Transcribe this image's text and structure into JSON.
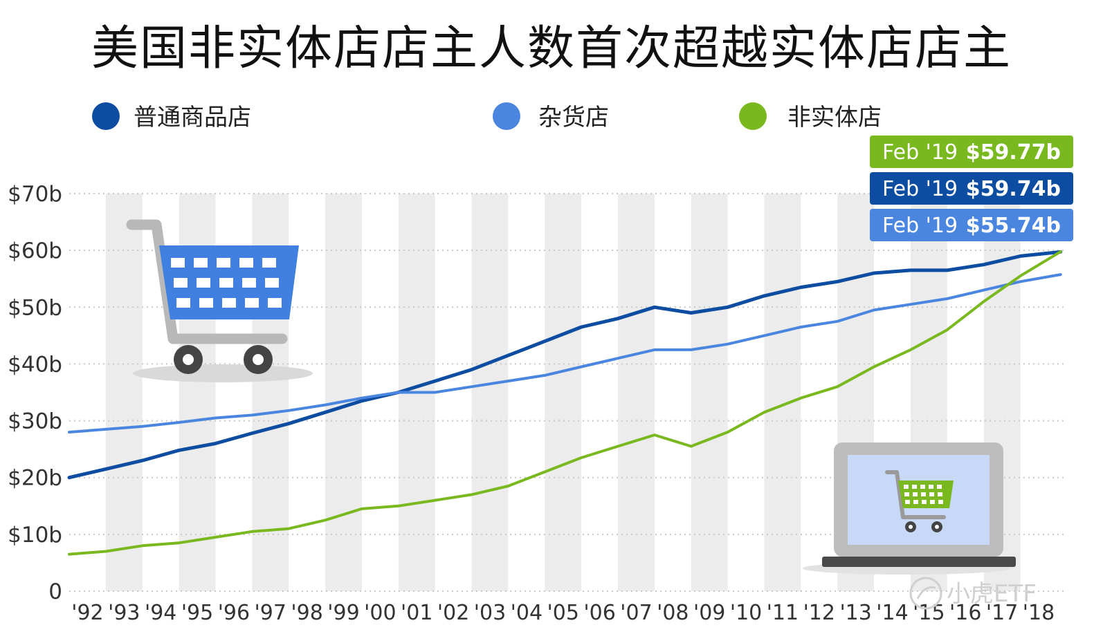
{
  "title": "美国非实体店店主人数首次超越实体店店主",
  "watermark": "小虎ETF",
  "chart_data": {
    "type": "line",
    "title": "美国非实体店店主人数首次超越实体店店主",
    "ylim": [
      0,
      70
    ],
    "xlim": [
      1992,
      2019.2
    ],
    "y_ticks": [
      {
        "value": 70,
        "label": "$70b"
      },
      {
        "value": 60,
        "label": "$60b"
      },
      {
        "value": 50,
        "label": "$50b"
      },
      {
        "value": 40,
        "label": "$40b"
      },
      {
        "value": 30,
        "label": "$30b"
      },
      {
        "value": 20,
        "label": "$20b"
      },
      {
        "value": 10,
        "label": "$10b"
      },
      {
        "value": 0,
        "label": "0"
      }
    ],
    "x_ticks": [
      "'92",
      "'93",
      "'94",
      "'95",
      "'96",
      "'97",
      "'98",
      "'99",
      "'00",
      "'01",
      "'02",
      "'03",
      "'04",
      "'05",
      "'06",
      "'07",
      "'08",
      "'09",
      "'10",
      "'11",
      "'12",
      "'13",
      "'14",
      "'15",
      "'16",
      "'17",
      "'18"
    ],
    "grid": "horizontal dotted, alternating vertical year bands",
    "legend_position": "top",
    "series": [
      {
        "name": "普通商品店",
        "color": "#0c4da2",
        "x": [
          1992,
          1993,
          1994,
          1995,
          1996,
          1997,
          1998,
          1999,
          2000,
          2001,
          2002,
          2003,
          2004,
          2005,
          2006,
          2007,
          2008,
          2009,
          2010,
          2011,
          2012,
          2013,
          2014,
          2015,
          2016,
          2017,
          2018,
          2019.1
        ],
        "values": [
          20,
          21.5,
          23,
          24.8,
          26,
          27.8,
          29.5,
          31.5,
          33.5,
          35,
          37,
          39,
          41.5,
          44,
          46.5,
          48,
          50,
          49,
          50,
          52,
          53.5,
          54.5,
          56,
          56.5,
          56.5,
          57.5,
          59,
          59.74
        ]
      },
      {
        "name": "杂货店",
        "color": "#4a86e0",
        "x": [
          1992,
          1993,
          1994,
          1995,
          1996,
          1997,
          1998,
          1999,
          2000,
          2001,
          2002,
          2003,
          2004,
          2005,
          2006,
          2007,
          2008,
          2009,
          2010,
          2011,
          2012,
          2013,
          2014,
          2015,
          2016,
          2017,
          2018,
          2019.1
        ],
        "values": [
          28,
          28.5,
          29,
          29.7,
          30.5,
          31,
          31.8,
          32.8,
          34,
          35,
          35,
          36,
          37,
          38,
          39.5,
          41,
          42.5,
          42.5,
          43.5,
          45,
          46.5,
          47.5,
          49.5,
          50.5,
          51.5,
          53,
          54.5,
          55.74
        ]
      },
      {
        "name": "非实体店",
        "color": "#79b81e",
        "x": [
          1992,
          1993,
          1994,
          1995,
          1996,
          1997,
          1998,
          1999,
          2000,
          2001,
          2002,
          2003,
          2004,
          2005,
          2006,
          2007,
          2008,
          2009,
          2010,
          2011,
          2012,
          2013,
          2014,
          2015,
          2016,
          2017,
          2018,
          2019.1
        ],
        "values": [
          6.5,
          7,
          8,
          8.5,
          9.5,
          10.5,
          11,
          12.5,
          14.5,
          15,
          16,
          17,
          18.5,
          21,
          23.5,
          25.5,
          27.5,
          25.5,
          28,
          31.5,
          34,
          36,
          39.5,
          42.5,
          46,
          51,
          55.5,
          59.77
        ]
      }
    ],
    "callouts": [
      {
        "date": "Feb '19",
        "value": "$59.77b",
        "color": "#79b81e"
      },
      {
        "date": "Feb '19",
        "value": "$59.74b",
        "color": "#0c4da2"
      },
      {
        "date": "Feb '19",
        "value": "$55.74b",
        "color": "#4a86e0"
      }
    ]
  }
}
